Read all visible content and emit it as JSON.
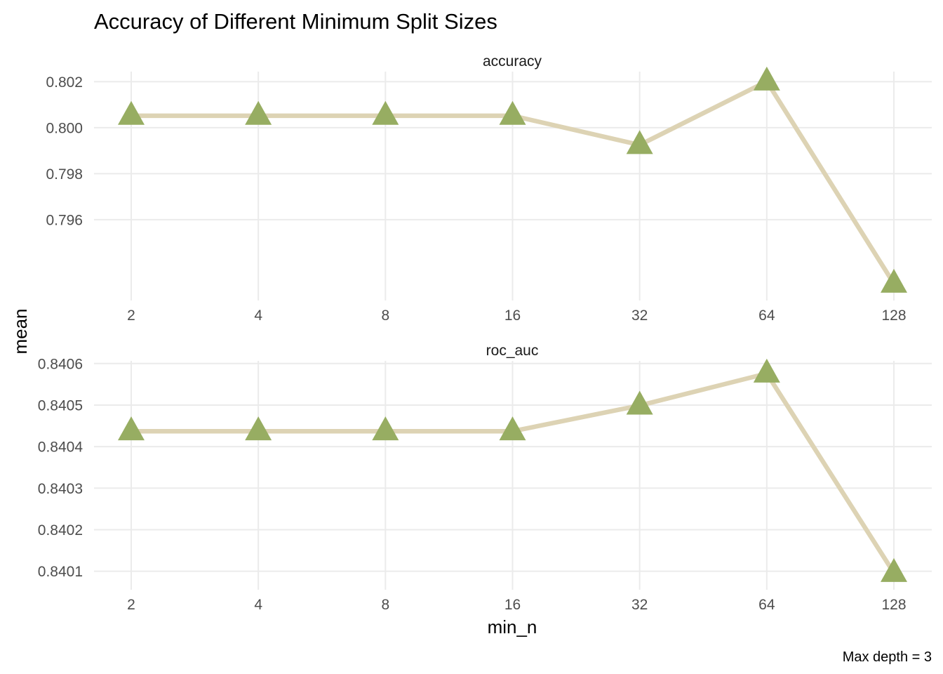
{
  "chart_data": {
    "type": "line",
    "title": "Accuracy of Different Minimum Split Sizes",
    "xlabel": "min_n",
    "ylabel": "mean",
    "caption": "Max depth = 3",
    "categories": [
      "2",
      "4",
      "8",
      "16",
      "32",
      "64",
      "128"
    ],
    "grid": true,
    "colors": {
      "line": "#ddd3b4",
      "marker": "#97ad62",
      "grid": "#ebebeb"
    },
    "marker_shape": "triangle",
    "panels": [
      {
        "name": "accuracy",
        "values": [
          0.80052,
          0.80052,
          0.80052,
          0.80052,
          0.79925,
          0.80201,
          0.79322
        ],
        "ylim": [
          0.79322,
          0.80201
        ],
        "yticks": [
          0.796,
          0.798,
          0.8,
          0.802
        ],
        "ytick_labels": [
          "0.796",
          "0.798",
          "0.800",
          "0.802"
        ]
      },
      {
        "name": "roc_auc",
        "values": [
          0.840437,
          0.840437,
          0.840437,
          0.840437,
          0.840499,
          0.840576,
          0.840096
        ],
        "ylim": [
          0.840096,
          0.840576
        ],
        "yticks": [
          0.8401,
          0.8402,
          0.8403,
          0.8404,
          0.8405,
          0.8406
        ],
        "ytick_labels": [
          "0.8401",
          "0.8402",
          "0.8403",
          "0.8404",
          "0.8405",
          "0.8406"
        ]
      }
    ]
  }
}
